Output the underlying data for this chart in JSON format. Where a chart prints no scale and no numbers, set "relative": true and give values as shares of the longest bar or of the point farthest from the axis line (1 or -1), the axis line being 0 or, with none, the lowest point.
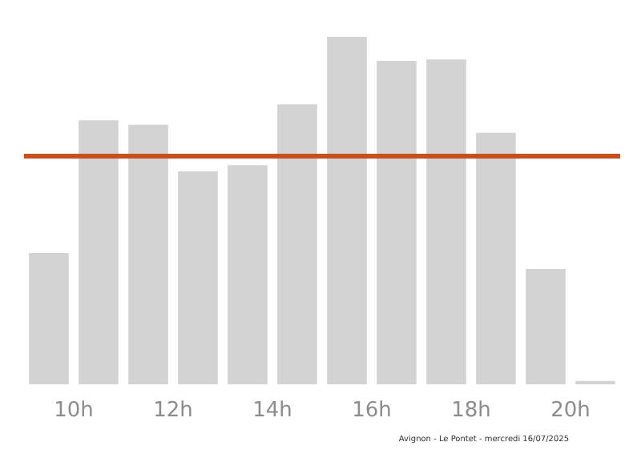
{
  "chart_data": {
    "type": "bar",
    "relative": true,
    "color": "#d3d3d3",
    "x": [
      9.5,
      10.5,
      11.5,
      12.5,
      13.5,
      14.5,
      15.5,
      16.5,
      17.5,
      18.5,
      19.5,
      20.5
    ],
    "values": [
      0.378,
      0.76,
      0.747,
      0.613,
      0.631,
      0.806,
      1,
      0.931,
      0.935,
      0.724,
      0.332,
      0.01
    ],
    "xlim": [
      9,
      21
    ],
    "xticks": [
      {
        "value": 10,
        "label": "10h"
      },
      {
        "value": 12,
        "label": "12h"
      },
      {
        "value": 14,
        "label": "14h"
      },
      {
        "value": 16,
        "label": "16h"
      },
      {
        "value": 18,
        "label": "18h"
      },
      {
        "value": 20,
        "label": "20h"
      }
    ],
    "ref_lines": [
      {
        "axis": "y",
        "value": 0.659,
        "color": "#c8501e"
      }
    ],
    "annotations": [
      "Avignon - Le Pontet - mercredi 16/07/2025"
    ]
  }
}
